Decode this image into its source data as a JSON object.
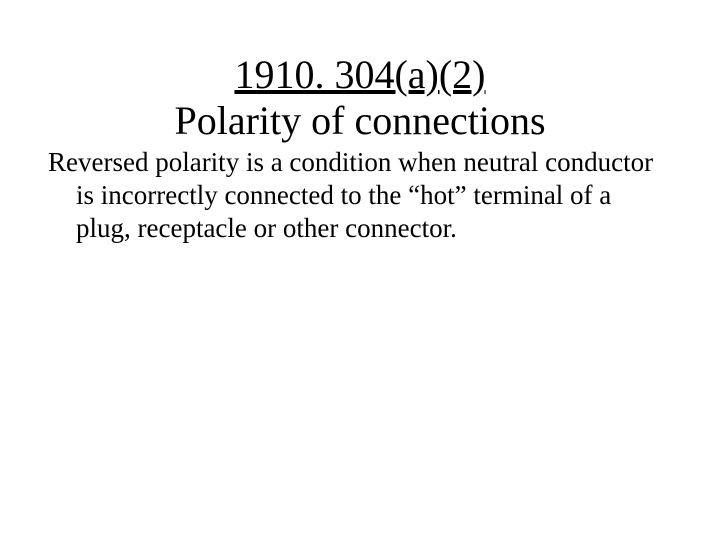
{
  "slide": {
    "citation": "1910. 304(a)(2)",
    "title": "Polarity of connections",
    "body": "Reversed polarity is a condition when neutral conductor is incorrectly connected to the “hot” terminal of a plug, receptacle or other connector."
  },
  "style": {
    "background_color": "#ffffff",
    "text_color": "#000000",
    "font_family": "Times New Roman",
    "heading_fontsize": 40,
    "body_fontsize": 27,
    "citation_underline": true
  }
}
